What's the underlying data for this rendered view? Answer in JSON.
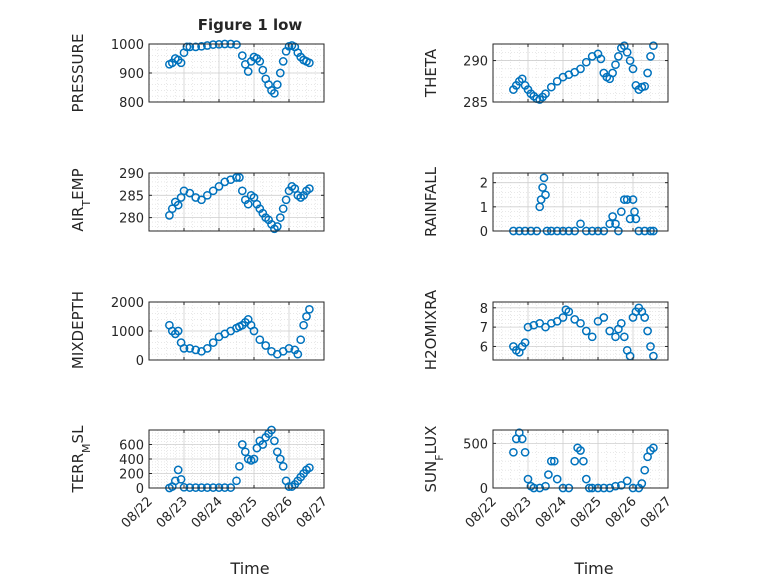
{
  "figure": {
    "title": "Figure 1 low",
    "xlabel": "Time",
    "marker_color": "#0072BD",
    "grid_color": "#d9d9d9",
    "axes_color": "#262626"
  },
  "chart_data": [
    {
      "type": "scatter",
      "ylabel": "PRESSURE",
      "ylim": [
        800,
        1000
      ],
      "yticks": [
        "800",
        "900",
        "1000"
      ],
      "x": [
        "08/22 14:00",
        "08/22 16:00",
        "08/22 18:00",
        "08/22 20:00",
        "08/22 22:00",
        "08/23 00:00",
        "08/23 02:00",
        "08/23 04:00",
        "08/23 08:00",
        "08/23 12:00",
        "08/23 16:00",
        "08/23 20:00",
        "08/24 00:00",
        "08/24 04:00",
        "08/24 08:00",
        "08/24 12:00",
        "08/24 16:00",
        "08/24 18:00",
        "08/24 20:00",
        "08/24 22:00",
        "08/25 00:00",
        "08/25 02:00",
        "08/25 04:00",
        "08/25 06:00",
        "08/25 08:00",
        "08/25 10:00",
        "08/25 12:00",
        "08/25 14:00",
        "08/25 16:00",
        "08/25 18:00",
        "08/25 20:00",
        "08/25 22:00",
        "08/26 00:00",
        "08/26 02:00",
        "08/26 04:00",
        "08/26 06:00",
        "08/26 08:00",
        "08/26 10:00",
        "08/26 12:00",
        "08/26 14:00"
      ],
      "y": [
        930,
        935,
        950,
        945,
        935,
        970,
        990,
        990,
        990,
        992,
        995,
        998,
        999,
        1000,
        1000,
        998,
        960,
        930,
        905,
        940,
        955,
        950,
        940,
        910,
        880,
        860,
        840,
        830,
        860,
        900,
        940,
        975,
        992,
        995,
        990,
        970,
        955,
        945,
        940,
        935
      ]
    },
    {
      "type": "scatter",
      "ylabel": "THETA",
      "ylim": [
        285,
        292
      ],
      "yticks": [
        "285",
        "290"
      ],
      "x": [
        "08/22 14:00",
        "08/22 16:00",
        "08/22 18:00",
        "08/22 20:00",
        "08/22 22:00",
        "08/23 00:00",
        "08/23 02:00",
        "08/23 04:00",
        "08/23 06:00",
        "08/23 08:00",
        "08/23 10:00",
        "08/23 12:00",
        "08/23 16:00",
        "08/23 20:00",
        "08/24 00:00",
        "08/24 04:00",
        "08/24 08:00",
        "08/24 12:00",
        "08/24 16:00",
        "08/24 20:00",
        "08/25 00:00",
        "08/25 02:00",
        "08/25 04:00",
        "08/25 06:00",
        "08/25 08:00",
        "08/25 10:00",
        "08/25 12:00",
        "08/25 14:00",
        "08/25 16:00",
        "08/25 18:00",
        "08/25 20:00",
        "08/25 22:00",
        "08/26 00:00",
        "08/26 02:00",
        "08/26 04:00",
        "08/26 06:00",
        "08/26 08:00",
        "08/26 10:00",
        "08/26 12:00",
        "08/26 14:00"
      ],
      "y": [
        286.5,
        287,
        287.5,
        287.8,
        287,
        286.5,
        286,
        285.7,
        285.4,
        285.3,
        285.6,
        286,
        286.8,
        287.5,
        288,
        288.3,
        288.6,
        289,
        289.8,
        290.5,
        290.8,
        290.2,
        288.5,
        288,
        287.8,
        288.5,
        289.5,
        290.5,
        291.5,
        291.8,
        291,
        290,
        289,
        287,
        286.5,
        286.8,
        286.9,
        288.5,
        290.5,
        291.8
      ]
    },
    {
      "type": "scatter",
      "ylabel": "AIR_TEMP",
      "ylim": [
        277,
        290
      ],
      "yticks": [
        "280",
        "285",
        "290"
      ],
      "x": [
        "08/22 14:00",
        "08/22 16:00",
        "08/22 18:00",
        "08/22 20:00",
        "08/22 22:00",
        "08/23 00:00",
        "08/23 04:00",
        "08/23 08:00",
        "08/23 12:00",
        "08/23 16:00",
        "08/23 20:00",
        "08/24 00:00",
        "08/24 04:00",
        "08/24 08:00",
        "08/24 12:00",
        "08/24 14:00",
        "08/24 16:00",
        "08/24 18:00",
        "08/24 20:00",
        "08/24 22:00",
        "08/25 00:00",
        "08/25 02:00",
        "08/25 04:00",
        "08/25 06:00",
        "08/25 08:00",
        "08/25 10:00",
        "08/25 12:00",
        "08/25 14:00",
        "08/25 16:00",
        "08/25 18:00",
        "08/25 20:00",
        "08/25 22:00",
        "08/26 00:00",
        "08/26 02:00",
        "08/26 04:00",
        "08/26 06:00",
        "08/26 08:00",
        "08/26 10:00",
        "08/26 12:00",
        "08/26 14:00"
      ],
      "y": [
        280.5,
        282,
        283.5,
        282.8,
        284.5,
        286,
        285.5,
        284.5,
        284,
        285,
        286,
        287,
        288,
        288.5,
        289,
        289,
        286,
        284,
        283,
        285,
        284.5,
        283,
        282,
        281,
        280,
        279.5,
        278.5,
        277.5,
        278,
        280,
        282,
        284,
        286,
        287,
        286.5,
        285,
        284.5,
        285,
        286,
        286.5
      ]
    },
    {
      "type": "scatter",
      "ylabel": "RAINFALL",
      "ylim": [
        0,
        2.4
      ],
      "yticks": [
        "0",
        "1",
        "2"
      ],
      "x": [
        "08/22 14:00",
        "08/22 18:00",
        "08/22 22:00",
        "08/23 02:00",
        "08/23 06:00",
        "08/23 08:00",
        "08/23 09:00",
        "08/23 10:00",
        "08/23 11:00",
        "08/23 12:00",
        "08/23 13:00",
        "08/23 16:00",
        "08/23 20:00",
        "08/24 00:00",
        "08/24 04:00",
        "08/24 08:00",
        "08/24 12:00",
        "08/24 16:00",
        "08/24 20:00",
        "08/25 00:00",
        "08/25 04:00",
        "08/25 08:00",
        "08/25 10:00",
        "08/25 12:00",
        "08/25 14:00",
        "08/25 16:00",
        "08/25 18:00",
        "08/25 20:00",
        "08/25 22:00",
        "08/26 00:00",
        "08/26 01:00",
        "08/26 02:00",
        "08/26 04:00",
        "08/26 08:00",
        "08/26 12:00",
        "08/26 14:00"
      ],
      "y": [
        0,
        0,
        0,
        0,
        0,
        1.0,
        1.3,
        1.8,
        2.2,
        1.5,
        0,
        0,
        0,
        0,
        0,
        0,
        0.3,
        0,
        0,
        0,
        0,
        0.3,
        0.6,
        0.3,
        0,
        0.8,
        1.3,
        1.3,
        0.5,
        1.3,
        0.8,
        0.5,
        0,
        0,
        0,
        0
      ]
    },
    {
      "type": "scatter",
      "ylabel": "MIXDEPTH",
      "ylim": [
        0,
        2000
      ],
      "yticks": [
        "0",
        "1000",
        "2000"
      ],
      "x": [
        "08/22 14:00",
        "08/22 16:00",
        "08/22 18:00",
        "08/22 20:00",
        "08/22 22:00",
        "08/23 00:00",
        "08/23 04:00",
        "08/23 08:00",
        "08/23 12:00",
        "08/23 16:00",
        "08/23 20:00",
        "08/24 00:00",
        "08/24 04:00",
        "08/24 08:00",
        "08/24 12:00",
        "08/24 14:00",
        "08/24 16:00",
        "08/24 18:00",
        "08/24 20:00",
        "08/24 22:00",
        "08/25 00:00",
        "08/25 04:00",
        "08/25 08:00",
        "08/25 12:00",
        "08/25 16:00",
        "08/25 20:00",
        "08/26 00:00",
        "08/26 04:00",
        "08/26 06:00",
        "08/26 08:00",
        "08/26 10:00",
        "08/26 12:00",
        "08/26 14:00"
      ],
      "y": [
        1200,
        1000,
        900,
        1000,
        600,
        400,
        400,
        350,
        300,
        400,
        600,
        800,
        900,
        1000,
        1100,
        1150,
        1200,
        1300,
        1400,
        1200,
        1000,
        700,
        500,
        300,
        200,
        300,
        400,
        350,
        200,
        700,
        1200,
        1500,
        1750
      ]
    },
    {
      "type": "scatter",
      "ylabel": "H2OMIXRA",
      "ylim": [
        5.3,
        8.3
      ],
      "yticks": [
        "6",
        "7",
        "8"
      ],
      "x": [
        "08/22 14:00",
        "08/22 16:00",
        "08/22 18:00",
        "08/22 20:00",
        "08/22 22:00",
        "08/23 00:00",
        "08/23 04:00",
        "08/23 08:00",
        "08/23 12:00",
        "08/23 16:00",
        "08/23 20:00",
        "08/24 00:00",
        "08/24 02:00",
        "08/24 04:00",
        "08/24 08:00",
        "08/24 12:00",
        "08/24 16:00",
        "08/24 20:00",
        "08/25 00:00",
        "08/25 04:00",
        "08/25 08:00",
        "08/25 12:00",
        "08/25 14:00",
        "08/25 16:00",
        "08/25 18:00",
        "08/25 20:00",
        "08/25 22:00",
        "08/26 00:00",
        "08/26 02:00",
        "08/26 04:00",
        "08/26 06:00",
        "08/26 08:00",
        "08/26 10:00",
        "08/26 12:00",
        "08/26 14:00"
      ],
      "y": [
        6.0,
        5.8,
        5.7,
        6.0,
        6.2,
        7.0,
        7.1,
        7.2,
        7.0,
        7.2,
        7.3,
        7.5,
        7.9,
        7.8,
        7.4,
        7.2,
        6.8,
        6.5,
        7.3,
        7.5,
        6.8,
        6.5,
        6.9,
        7.2,
        6.5,
        5.8,
        5.5,
        7.5,
        7.8,
        8.0,
        7.8,
        7.5,
        6.8,
        6.0,
        5.5
      ]
    },
    {
      "type": "scatter",
      "ylabel": "TERR_MSL",
      "ylim": [
        0,
        800
      ],
      "yticks": [
        "0",
        "200",
        "400",
        "600"
      ],
      "x": [
        "08/22 14:00",
        "08/22 16:00",
        "08/22 18:00",
        "08/22 20:00",
        "08/22 22:00",
        "08/23 00:00",
        "08/23 04:00",
        "08/23 08:00",
        "08/23 12:00",
        "08/23 16:00",
        "08/23 20:00",
        "08/24 00:00",
        "08/24 04:00",
        "08/24 08:00",
        "08/24 12:00",
        "08/24 14:00",
        "08/24 16:00",
        "08/24 18:00",
        "08/24 20:00",
        "08/24 22:00",
        "08/25 00:00",
        "08/25 02:00",
        "08/25 04:00",
        "08/25 06:00",
        "08/25 08:00",
        "08/25 10:00",
        "08/25 12:00",
        "08/25 14:00",
        "08/25 16:00",
        "08/25 18:00",
        "08/25 20:00",
        "08/25 22:00",
        "08/26 00:00",
        "08/26 02:00",
        "08/26 04:00",
        "08/26 06:00",
        "08/26 08:00",
        "08/26 10:00",
        "08/26 12:00",
        "08/26 14:00"
      ],
      "y": [
        0,
        20,
        100,
        250,
        120,
        10,
        5,
        5,
        5,
        5,
        5,
        5,
        5,
        5,
        100,
        300,
        600,
        500,
        400,
        380,
        400,
        550,
        650,
        600,
        700,
        750,
        800,
        650,
        500,
        400,
        300,
        100,
        20,
        20,
        50,
        100,
        150,
        200,
        250,
        280
      ]
    },
    {
      "type": "scatter",
      "ylabel": "SUN_FLUX",
      "ylim": [
        0,
        650
      ],
      "yticks": [
        "0",
        "500"
      ],
      "x": [
        "08/22 14:00",
        "08/22 16:00",
        "08/22 18:00",
        "08/22 20:00",
        "08/22 22:00",
        "08/23 00:00",
        "08/23 02:00",
        "08/23 04:00",
        "08/23 08:00",
        "08/23 12:00",
        "08/23 14:00",
        "08/23 16:00",
        "08/23 18:00",
        "08/23 20:00",
        "08/24 00:00",
        "08/24 04:00",
        "08/24 08:00",
        "08/24 10:00",
        "08/24 12:00",
        "08/24 14:00",
        "08/24 16:00",
        "08/24 18:00",
        "08/24 20:00",
        "08/25 00:00",
        "08/25 04:00",
        "08/25 08:00",
        "08/25 12:00",
        "08/25 16:00",
        "08/25 20:00",
        "08/26 00:00",
        "08/26 04:00",
        "08/26 06:00",
        "08/26 08:00",
        "08/26 10:00",
        "08/26 12:00",
        "08/26 14:00"
      ],
      "y": [
        400,
        550,
        620,
        550,
        400,
        100,
        20,
        0,
        0,
        20,
        150,
        300,
        300,
        100,
        0,
        0,
        300,
        450,
        420,
        300,
        100,
        0,
        0,
        0,
        0,
        0,
        20,
        30,
        80,
        0,
        0,
        50,
        200,
        350,
        420,
        450
      ]
    }
  ],
  "x_axis": {
    "ticks": [
      "08/22",
      "08/23",
      "08/24",
      "08/25",
      "08/26",
      "08/27"
    ],
    "range": [
      "08/22 00:00",
      "08/27 00:00"
    ]
  }
}
